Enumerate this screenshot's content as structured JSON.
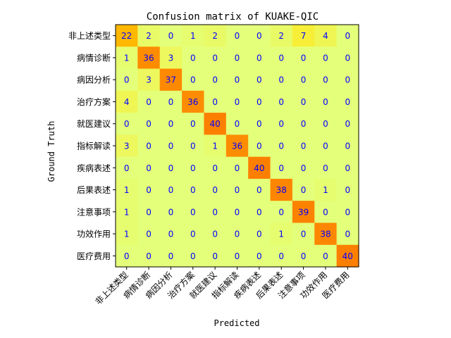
{
  "chart_data": {
    "type": "heatmap",
    "title": "Confusion matrix of KUAKE-QIC",
    "xlabel": "Predicted",
    "ylabel": "Ground Truth",
    "categories": [
      "非上述类型",
      "病情诊断",
      "病因分析",
      "治疗方案",
      "就医建议",
      "指标解读",
      "疾病表述",
      "后果表述",
      "注意事项",
      "功效作用",
      "医疗费用"
    ],
    "matrix": [
      [
        22,
        2,
        0,
        1,
        2,
        0,
        0,
        2,
        7,
        4,
        0
      ],
      [
        1,
        36,
        3,
        0,
        0,
        0,
        0,
        0,
        0,
        0,
        0
      ],
      [
        0,
        3,
        37,
        0,
        0,
        0,
        0,
        0,
        0,
        0,
        0
      ],
      [
        4,
        0,
        0,
        36,
        0,
        0,
        0,
        0,
        0,
        0,
        0
      ],
      [
        0,
        0,
        0,
        0,
        40,
        0,
        0,
        0,
        0,
        0,
        0
      ],
      [
        3,
        0,
        0,
        0,
        1,
        36,
        0,
        0,
        0,
        0,
        0
      ],
      [
        0,
        0,
        0,
        0,
        0,
        0,
        40,
        0,
        0,
        0,
        0
      ],
      [
        1,
        0,
        0,
        0,
        0,
        0,
        0,
        38,
        0,
        1,
        0
      ],
      [
        1,
        0,
        0,
        0,
        0,
        0,
        0,
        0,
        39,
        0,
        0
      ],
      [
        1,
        0,
        0,
        0,
        0,
        0,
        0,
        1,
        0,
        38,
        0
      ],
      [
        0,
        0,
        0,
        0,
        0,
        0,
        0,
        0,
        0,
        0,
        40
      ]
    ],
    "value_range": [
      0,
      40
    ],
    "colormap": "Wistia",
    "cell_text_color": "#0000ff",
    "grid": false
  }
}
